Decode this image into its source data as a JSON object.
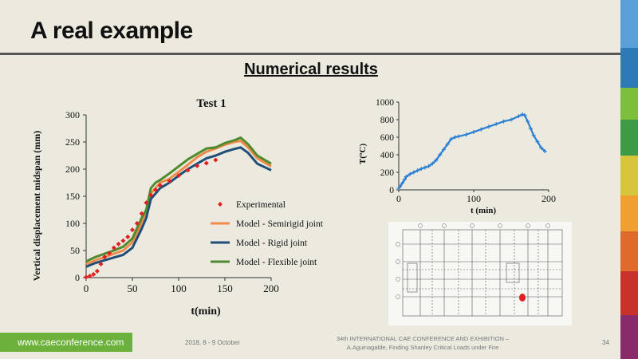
{
  "slide": {
    "title": "A real example",
    "subtitle": "Numerical results",
    "footer": {
      "url": "www.caeconference.com",
      "date": "2018, 8 -  9 October",
      "conference_line1": "34th INTERNATIONAL CAE CONFERENCE AND EXHIBITION –",
      "conference_line2": "A.Aguinagalde, Finding Shanley Critical Loads under Fire",
      "page": "34"
    }
  },
  "chart_data": [
    {
      "type": "line",
      "title": "Test 1",
      "xlabel": "t(min)",
      "ylabel": "Vertical displacement midspan (mm)",
      "xlim": [
        0,
        200
      ],
      "ylim": [
        0,
        300
      ],
      "xticks": [
        "0",
        "50",
        "100",
        "150",
        "200"
      ],
      "yticks": [
        "0",
        "50",
        "100",
        "150",
        "200",
        "250",
        "300"
      ],
      "legend_position": "right",
      "grid": false,
      "series": [
        {
          "name": "Experimental",
          "color": "#e02020",
          "marker": "diamond",
          "x": [
            0,
            4,
            8,
            12,
            16,
            20,
            25,
            30,
            35,
            40,
            45,
            50,
            55,
            60,
            65,
            70,
            75,
            80,
            90,
            100,
            110,
            120,
            130,
            140
          ],
          "y": [
            1,
            3,
            6,
            12,
            25,
            38,
            45,
            55,
            62,
            68,
            75,
            88,
            100,
            118,
            138,
            152,
            162,
            170,
            178,
            188,
            198,
            206,
            211,
            217
          ]
        },
        {
          "name": "Model - Semirigid joint",
          "color": "#f08a4b",
          "x": [
            0,
            10,
            20,
            30,
            40,
            50,
            60,
            65,
            70,
            75,
            80,
            90,
            100,
            110,
            120,
            130,
            140,
            150,
            160,
            167,
            175,
            185,
            200
          ],
          "y": [
            25,
            32,
            38,
            44,
            50,
            65,
            100,
            120,
            155,
            165,
            175,
            182,
            195,
            208,
            222,
            232,
            238,
            245,
            250,
            252,
            240,
            220,
            205
          ]
        },
        {
          "name": "Model - Rigid joint",
          "color": "#1f4e79",
          "x": [
            0,
            10,
            20,
            30,
            40,
            50,
            60,
            65,
            70,
            75,
            80,
            90,
            100,
            110,
            120,
            130,
            140,
            150,
            160,
            167,
            175,
            185,
            200
          ],
          "y": [
            20,
            27,
            32,
            37,
            42,
            55,
            90,
            110,
            145,
            155,
            165,
            175,
            188,
            200,
            210,
            220,
            225,
            232,
            237,
            240,
            230,
            210,
            198
          ]
        },
        {
          "name": "Model - Flexible joint",
          "color": "#4e8a2e",
          "x": [
            0,
            10,
            20,
            30,
            40,
            50,
            60,
            65,
            70,
            75,
            80,
            90,
            100,
            110,
            120,
            130,
            140,
            150,
            160,
            167,
            175,
            185,
            200
          ],
          "y": [
            30,
            38,
            44,
            50,
            57,
            72,
            110,
            125,
            165,
            175,
            180,
            192,
            205,
            218,
            228,
            238,
            240,
            248,
            253,
            258,
            246,
            225,
            210
          ]
        }
      ]
    },
    {
      "type": "scatter",
      "title": "",
      "xlabel": "t (min)",
      "ylabel": "T(ºC)",
      "xlim": [
        0,
        200
      ],
      "ylim": [
        0,
        1000
      ],
      "xticks": [
        "0",
        "100",
        "200"
      ],
      "yticks": [
        "0",
        "200",
        "400",
        "600",
        "800",
        "1000"
      ],
      "grid": false,
      "series": [
        {
          "color": "#2a7fd4",
          "marker": "plus",
          "x": [
            0,
            2,
            5,
            8,
            10,
            15,
            20,
            25,
            30,
            35,
            40,
            45,
            50,
            55,
            60,
            65,
            70,
            75,
            80,
            90,
            100,
            110,
            120,
            130,
            140,
            150,
            160,
            165,
            168,
            172,
            176,
            180,
            185,
            190,
            195
          ],
          "y": [
            20,
            40,
            80,
            120,
            150,
            180,
            200,
            220,
            240,
            255,
            270,
            300,
            340,
            400,
            460,
            520,
            580,
            600,
            610,
            630,
            660,
            690,
            720,
            750,
            780,
            800,
            840,
            860,
            850,
            780,
            700,
            620,
            550,
            480,
            440
          ]
        }
      ]
    }
  ]
}
